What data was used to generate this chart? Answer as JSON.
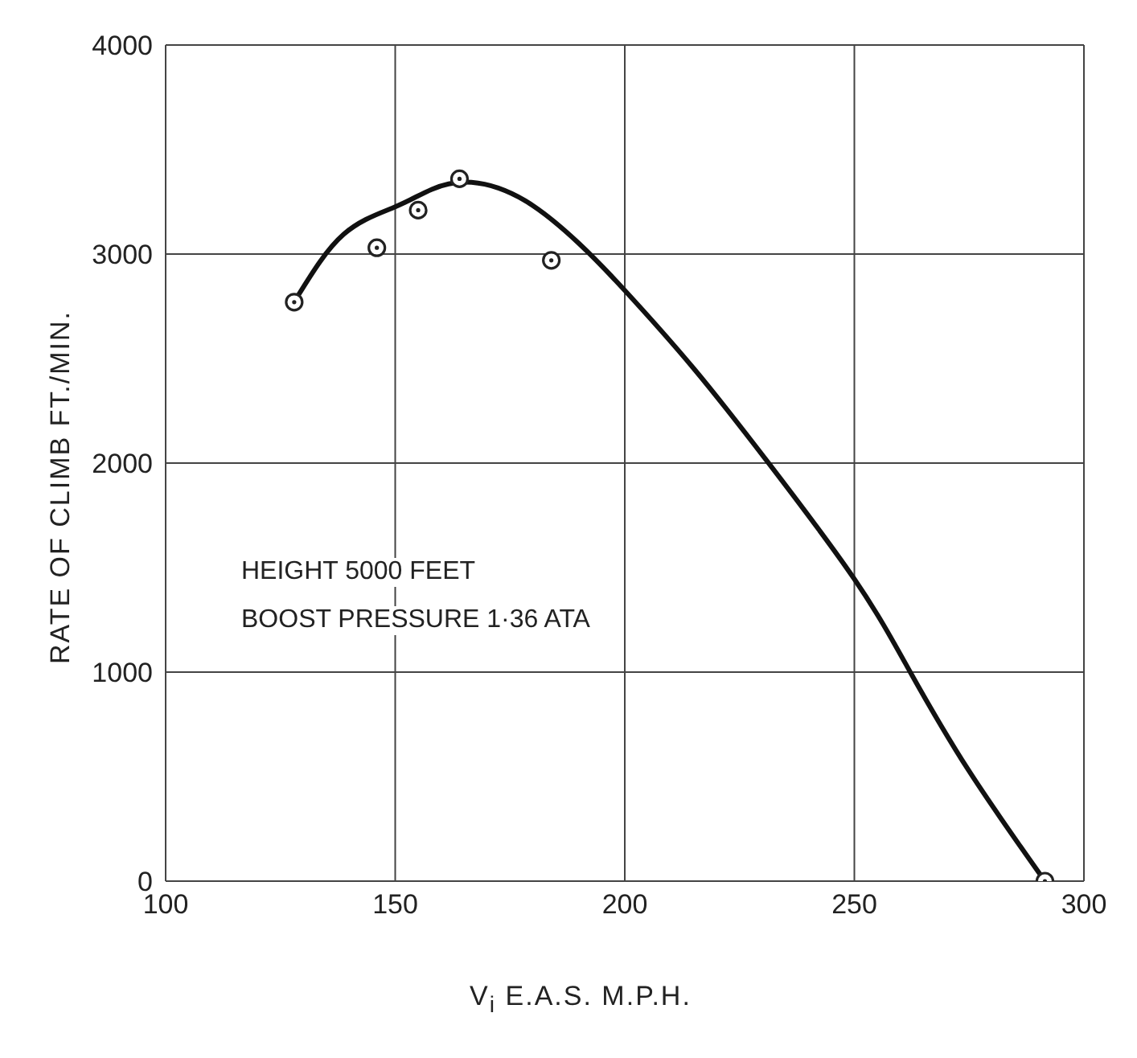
{
  "chart_data": {
    "type": "scatter",
    "xlabel": "V$_{i}$ E.A.S. M.P.H.",
    "ylabel": "RATE OF CLIMB FT./MIN.",
    "annotations": [
      "HEIGHT 5000 FEET",
      "BOOST PRESSURE 1·36 ATA"
    ],
    "xlim": [
      100,
      300
    ],
    "xticks": [
      100,
      150,
      200,
      250,
      300
    ],
    "ylim": [
      0,
      4000
    ],
    "yticks": [
      0,
      1000,
      2000,
      3000,
      4000
    ],
    "grid": true,
    "series": [
      {
        "color": "#222222",
        "marker": "circle",
        "x": [
          128,
          146,
          155,
          164,
          184,
          291.5
        ],
        "values": [
          2770,
          3030,
          3210,
          3360,
          2970,
          0
        ]
      },
      {
        "type": "line",
        "color": "#111111",
        "marker": "none",
        "line_style": "solid",
        "x": [
          128.8,
          138.8,
          150,
          158,
          166.6,
          178.3,
          190,
          200,
          215,
          231,
          250,
          262,
          275,
          291.5
        ],
        "values": [
          2800,
          3095,
          3226,
          3310,
          3343,
          3255,
          3051,
          2826,
          2453,
          2009,
          1445,
          1007,
          526,
          0
        ]
      }
    ]
  }
}
